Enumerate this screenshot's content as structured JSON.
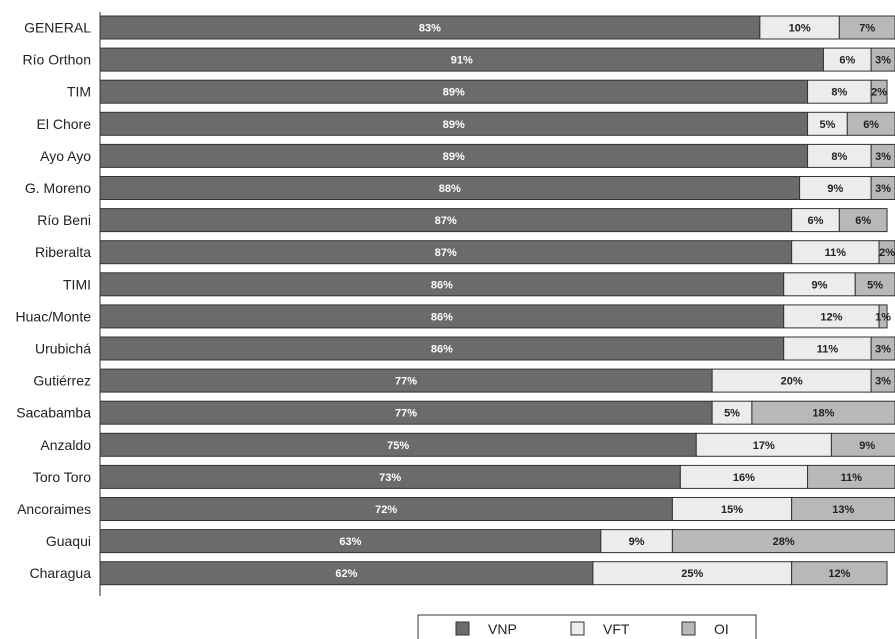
{
  "chart_data": {
    "type": "bar",
    "orientation": "horizontal",
    "stacked": true,
    "percent": true,
    "categories": [
      "GENERAL",
      "Río Orthon",
      "TIM",
      "El Chore",
      "Ayo Ayo",
      "G. Moreno",
      "Río Beni",
      "Riberalta",
      "TIMI",
      "Huac/Monte",
      "Urubichá",
      "Gutiérrez",
      "Sacabamba",
      "Anzaldo",
      "Toro Toro",
      "Ancoraimes",
      "Guaqui",
      "Charagua"
    ],
    "series": [
      {
        "name": "VNP",
        "color": "#6b6b6b",
        "values": [
          83,
          91,
          89,
          89,
          89,
          88,
          87,
          87,
          86,
          86,
          86,
          77,
          77,
          75,
          73,
          72,
          63,
          62
        ]
      },
      {
        "name": "VFT",
        "color": "#ececec",
        "values": [
          10,
          6,
          8,
          5,
          8,
          9,
          6,
          11,
          9,
          12,
          11,
          20,
          5,
          17,
          16,
          15,
          9,
          25
        ]
      },
      {
        "name": "OI",
        "color": "#b8b8b8",
        "values": [
          7,
          3,
          2,
          6,
          3,
          3,
          6,
          2,
          5,
          1,
          3,
          3,
          18,
          9,
          11,
          13,
          28,
          12
        ]
      }
    ],
    "xlim": [
      0,
      100
    ],
    "grid": false,
    "legend_position": "bottom"
  }
}
